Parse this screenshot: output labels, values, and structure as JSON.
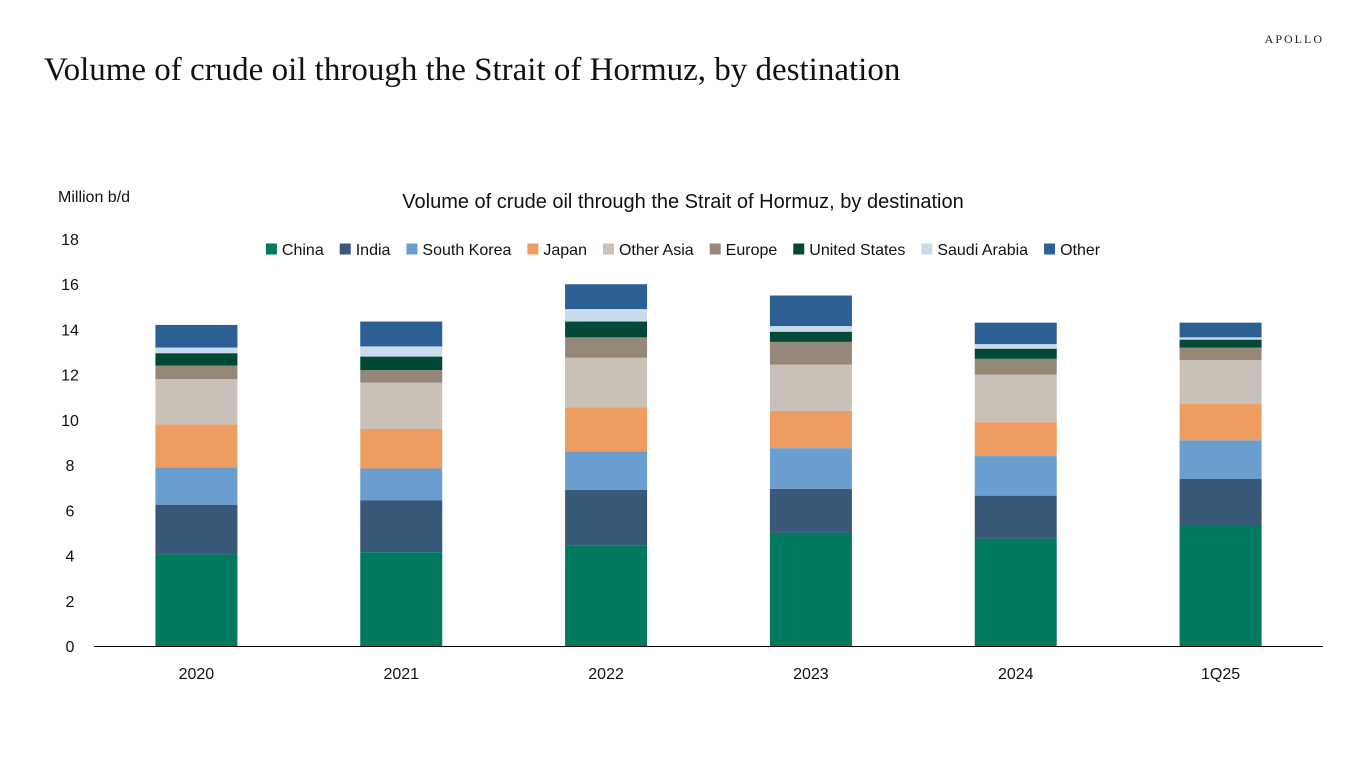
{
  "brand": "APOLLO",
  "page_title": "Volume of crude oil through the Strait of Hormuz, by destination",
  "chart_data": {
    "type": "bar",
    "stacked": true,
    "title": "Volume of crude oil through the Strait of Hormuz, by destination",
    "unit_label": "Million b/d",
    "xlabel": "",
    "ylabel": "",
    "ylim": [
      0,
      18
    ],
    "yticks": [
      0,
      2,
      4,
      6,
      8,
      10,
      12,
      14,
      16,
      18
    ],
    "grid": false,
    "legend_position": "top",
    "categories": [
      "2020",
      "2021",
      "2022",
      "2023",
      "2024",
      "1Q25"
    ],
    "series": [
      {
        "name": "China",
        "color": "#007A5E",
        "values": [
          4.05,
          4.15,
          4.45,
          5.0,
          4.75,
          5.35
        ]
      },
      {
        "name": "India",
        "color": "#38597A",
        "values": [
          2.2,
          2.3,
          2.45,
          1.95,
          1.9,
          2.05
        ]
      },
      {
        "name": "South Korea",
        "color": "#6A9ECF",
        "values": [
          1.65,
          1.4,
          1.7,
          1.8,
          1.75,
          1.7
        ]
      },
      {
        "name": "Japan",
        "color": "#EE9D62",
        "values": [
          1.9,
          1.75,
          1.95,
          1.65,
          1.5,
          1.6
        ]
      },
      {
        "name": "Other Asia",
        "color": "#C9C0B8",
        "values": [
          2.0,
          2.05,
          2.2,
          2.05,
          2.1,
          1.95
        ]
      },
      {
        "name": "Europe",
        "color": "#958878",
        "values": [
          0.6,
          0.55,
          0.9,
          1.0,
          0.7,
          0.55
        ]
      },
      {
        "name": "United States",
        "color": "#024837",
        "values": [
          0.55,
          0.6,
          0.7,
          0.45,
          0.45,
          0.35
        ]
      },
      {
        "name": "Saudi Arabia",
        "color": "#C8DCEE",
        "values": [
          0.25,
          0.45,
          0.55,
          0.25,
          0.2,
          0.1
        ]
      },
      {
        "name": "Other",
        "color": "#2C5F93",
        "values": [
          1.0,
          1.1,
          1.1,
          1.35,
          0.95,
          0.65
        ]
      }
    ]
  }
}
